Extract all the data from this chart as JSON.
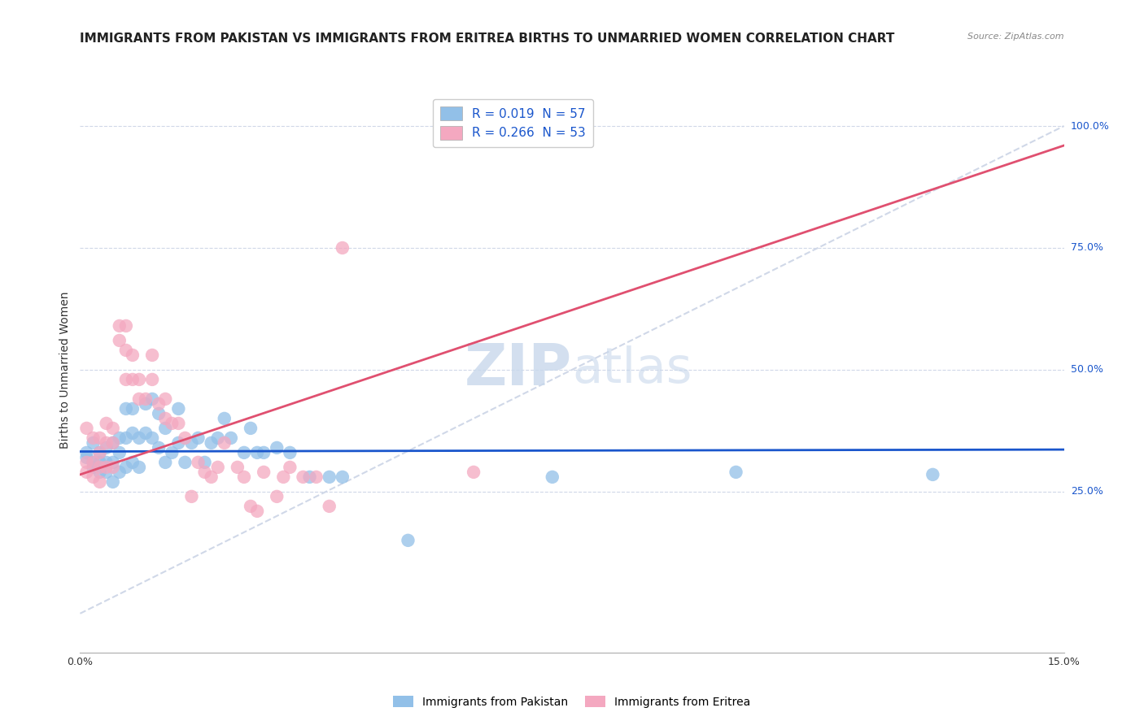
{
  "title": "IMMIGRANTS FROM PAKISTAN VS IMMIGRANTS FROM ERITREA BIRTHS TO UNMARRIED WOMEN CORRELATION CHART",
  "source": "Source: ZipAtlas.com",
  "ylabel": "Births to Unmarried Women",
  "y_ticks": [
    "100.0%",
    "75.0%",
    "50.0%",
    "25.0%"
  ],
  "y_tick_vals": [
    1.0,
    0.75,
    0.5,
    0.25
  ],
  "x_range": [
    0.0,
    0.15
  ],
  "y_range": [
    -0.08,
    1.08
  ],
  "watermark_zip": "ZIP",
  "watermark_atlas": "atlas",
  "pakistan_color": "#92c0e8",
  "eritrea_color": "#f4a8c0",
  "regression_pakistan_color": "#1a56cc",
  "regression_eritrea_color": "#e05070",
  "reference_line_color": "#d0d8e8",
  "pakistan_R": 0.019,
  "eritrea_R": 0.266,
  "pakistan_N": 57,
  "eritrea_N": 53,
  "pakistan_x": [
    0.001,
    0.001,
    0.002,
    0.002,
    0.002,
    0.003,
    0.003,
    0.003,
    0.004,
    0.004,
    0.004,
    0.005,
    0.005,
    0.005,
    0.006,
    0.006,
    0.006,
    0.007,
    0.007,
    0.007,
    0.008,
    0.008,
    0.008,
    0.009,
    0.009,
    0.01,
    0.01,
    0.011,
    0.011,
    0.012,
    0.012,
    0.013,
    0.013,
    0.014,
    0.015,
    0.015,
    0.016,
    0.017,
    0.018,
    0.019,
    0.02,
    0.021,
    0.022,
    0.023,
    0.025,
    0.026,
    0.027,
    0.028,
    0.03,
    0.032,
    0.035,
    0.038,
    0.04,
    0.05,
    0.072,
    0.1,
    0.13
  ],
  "pakistan_y": [
    0.32,
    0.33,
    0.31,
    0.35,
    0.3,
    0.33,
    0.31,
    0.29,
    0.34,
    0.31,
    0.29,
    0.35,
    0.31,
    0.27,
    0.36,
    0.33,
    0.29,
    0.42,
    0.36,
    0.3,
    0.42,
    0.37,
    0.31,
    0.36,
    0.3,
    0.43,
    0.37,
    0.44,
    0.36,
    0.41,
    0.34,
    0.38,
    0.31,
    0.33,
    0.42,
    0.35,
    0.31,
    0.35,
    0.36,
    0.31,
    0.35,
    0.36,
    0.4,
    0.36,
    0.33,
    0.38,
    0.33,
    0.33,
    0.34,
    0.33,
    0.28,
    0.28,
    0.28,
    0.15,
    0.28,
    0.29,
    0.285
  ],
  "eritrea_x": [
    0.001,
    0.001,
    0.001,
    0.002,
    0.002,
    0.002,
    0.003,
    0.003,
    0.003,
    0.003,
    0.004,
    0.004,
    0.004,
    0.005,
    0.005,
    0.005,
    0.006,
    0.006,
    0.007,
    0.007,
    0.007,
    0.008,
    0.008,
    0.009,
    0.009,
    0.01,
    0.011,
    0.011,
    0.012,
    0.013,
    0.013,
    0.014,
    0.015,
    0.016,
    0.017,
    0.018,
    0.019,
    0.02,
    0.021,
    0.022,
    0.024,
    0.025,
    0.026,
    0.027,
    0.028,
    0.03,
    0.031,
    0.032,
    0.034,
    0.036,
    0.038,
    0.04,
    0.06
  ],
  "eritrea_y": [
    0.38,
    0.31,
    0.29,
    0.36,
    0.31,
    0.28,
    0.36,
    0.33,
    0.3,
    0.27,
    0.39,
    0.35,
    0.3,
    0.38,
    0.35,
    0.3,
    0.59,
    0.56,
    0.59,
    0.54,
    0.48,
    0.53,
    0.48,
    0.48,
    0.44,
    0.44,
    0.53,
    0.48,
    0.43,
    0.44,
    0.4,
    0.39,
    0.39,
    0.36,
    0.24,
    0.31,
    0.29,
    0.28,
    0.3,
    0.35,
    0.3,
    0.28,
    0.22,
    0.21,
    0.29,
    0.24,
    0.28,
    0.3,
    0.28,
    0.28,
    0.22,
    0.75,
    0.29
  ],
  "background_color": "#ffffff",
  "grid_color": "#d0d8e8",
  "title_fontsize": 11,
  "axis_label_fontsize": 10,
  "tick_fontsize": 9,
  "legend_fontsize": 11,
  "legend_text_color": "#1a56cc"
}
